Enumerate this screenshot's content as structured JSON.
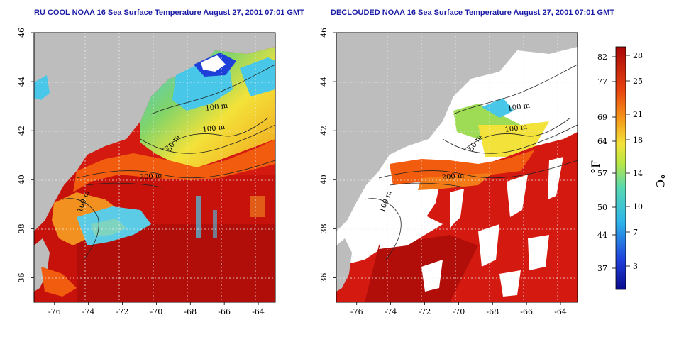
{
  "panels": [
    {
      "id": "left",
      "title": "RU COOL NOAA 16 Sea Surface Temperature August 27, 2001 07:01 GMT",
      "clouds": true
    },
    {
      "id": "right",
      "title": "DECLOUDED NOAA 16 Sea Surface Temperature August 27, 2001 07:01 GMT",
      "clouds": false
    }
  ],
  "axes": {
    "lon_ticks": [
      "-76",
      "-74",
      "-72",
      "-70",
      "-68",
      "-66",
      "-64"
    ],
    "lat_ticks": [
      "46",
      "44",
      "42",
      "40",
      "38",
      "36"
    ],
    "lon_range": [
      -77.2,
      -63
    ],
    "lat_range": [
      35,
      46
    ]
  },
  "contours": [
    {
      "label": "100 m"
    },
    {
      "label": "100 m"
    },
    {
      "label": "50 m"
    },
    {
      "label": "200 m"
    },
    {
      "label": "100 m"
    }
  ],
  "colorbar": {
    "fahrenheit_ticks": [
      "82",
      "77",
      "69",
      "64",
      "57",
      "50",
      "44",
      "37"
    ],
    "celsius_ticks": [
      "28",
      "25",
      "21",
      "18",
      "14",
      "10",
      "7",
      "3"
    ],
    "f_unit": "°F",
    "c_unit": "°C"
  },
  "colors": {
    "land": "#bdbdbd",
    "warm_red": "#d41a10",
    "orange": "#f25c0e",
    "yellow": "#f3e23a",
    "green": "#7fd46a",
    "cyan": "#49c7e8",
    "blue": "#1f3fd9",
    "cloud_white": "#ffffff",
    "title_blue": "#1a1aa6"
  }
}
